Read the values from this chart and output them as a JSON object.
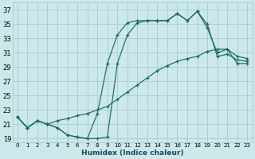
{
  "xlabel": "Humidex (Indice chaleur)",
  "bg_color": "#cce8ea",
  "grid_color": "#aacfd4",
  "line_color": "#1a6b5a",
  "xlim": [
    -0.5,
    23.5
  ],
  "ylim": [
    18.5,
    38
  ],
  "xticks": [
    0,
    1,
    2,
    3,
    4,
    5,
    6,
    7,
    8,
    9,
    10,
    11,
    12,
    13,
    14,
    15,
    16,
    17,
    18,
    19,
    20,
    21,
    22,
    23
  ],
  "yticks": [
    19,
    21,
    23,
    25,
    27,
    29,
    31,
    33,
    35,
    37
  ],
  "line1_x": [
    0,
    1,
    2,
    3,
    4,
    5,
    6,
    7,
    8,
    9,
    10,
    11,
    12,
    13,
    14,
    15,
    16,
    17,
    18,
    19,
    20,
    21,
    22,
    23
  ],
  "line1_y": [
    22.0,
    20.5,
    21.5,
    21.0,
    20.5,
    19.5,
    19.2,
    19.0,
    19.0,
    19.2,
    29.5,
    33.5,
    35.2,
    35.5,
    35.5,
    35.5,
    36.5,
    35.5,
    36.8,
    35.0,
    30.5,
    30.8,
    30.0,
    29.8
  ],
  "line2_x": [
    0,
    1,
    2,
    3,
    4,
    5,
    6,
    7,
    8,
    9,
    10,
    11,
    12,
    13,
    14,
    15,
    16,
    17,
    18,
    19,
    20,
    21,
    22,
    23
  ],
  "line2_y": [
    22.0,
    20.5,
    21.5,
    21.0,
    20.5,
    19.5,
    19.2,
    19.0,
    22.5,
    29.5,
    33.5,
    35.2,
    35.5,
    35.5,
    35.5,
    35.5,
    36.5,
    35.5,
    36.8,
    34.5,
    31.0,
    31.5,
    30.5,
    30.2
  ],
  "line3_x": [
    0,
    1,
    2,
    3,
    4,
    5,
    6,
    7,
    8,
    9,
    10,
    11,
    12,
    13,
    14,
    15,
    16,
    17,
    18,
    19,
    20,
    21,
    22,
    23
  ],
  "line3_y": [
    22.0,
    20.5,
    21.5,
    21.0,
    21.5,
    21.8,
    22.2,
    22.5,
    23.0,
    23.5,
    24.5,
    25.5,
    26.5,
    27.5,
    28.5,
    29.2,
    29.8,
    30.2,
    30.5,
    31.2,
    31.5,
    31.5,
    29.5,
    29.5
  ]
}
